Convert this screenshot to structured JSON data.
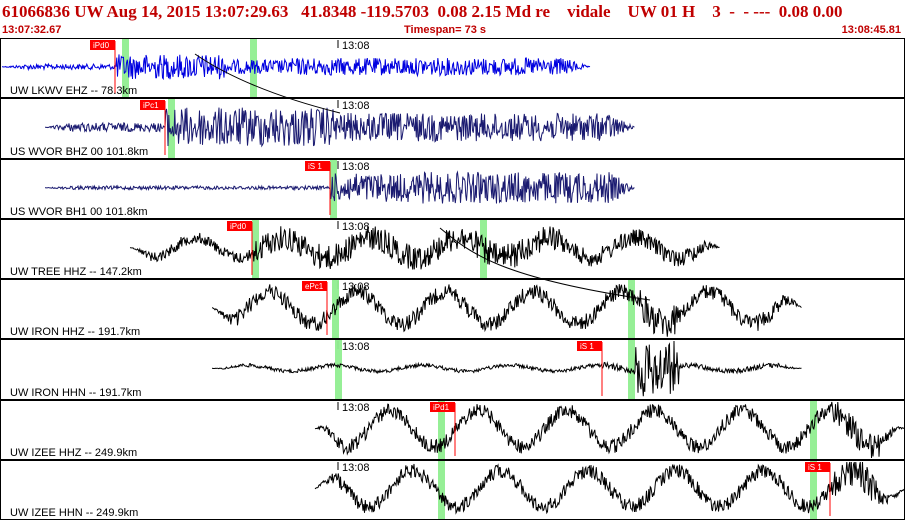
{
  "header": {
    "title": "61066836 UW Aug 14, 2015 13:07:29.63   41.8348 -119.5703  0.08 2.15 Md re    vidale    UW 01 H    3  -  - ---  0.08 0.00",
    "start_time": "13:07:32.67",
    "timespan": "Timespan=  73 s",
    "end_time": "13:08:45.81"
  },
  "colors": {
    "header_text": "#c00000",
    "pick_flag": "#ff0000",
    "window_marker": "#90ee90",
    "trace_blue": "#0000e0",
    "trace_navy": "#1a1a70",
    "trace_black": "#000000"
  },
  "channels": [
    {
      "label": "UW LKWV EHZ -- 78.3km",
      "time_label": "13:08",
      "color": "trace_blue",
      "pick": "iPd0",
      "pick_kind": "P"
    },
    {
      "label": "US WVOR BHZ 00 101.8km",
      "time_label": "13:08",
      "color": "trace_navy",
      "pick": "iPc1",
      "pick_kind": "P"
    },
    {
      "label": "US WVOR BH1 00 101.8km",
      "time_label": "13:08",
      "color": "trace_navy",
      "pick": "iS 1",
      "pick_kind": "S"
    },
    {
      "label": "UW TREE HHZ -- 147.2km",
      "time_label": "13:08",
      "color": "trace_black",
      "pick": "iPd0",
      "pick_kind": "P"
    },
    {
      "label": "UW IRON HHZ -- 191.7km",
      "time_label": "13:08",
      "color": "trace_black",
      "pick": "ePc1",
      "pick_kind": "P"
    },
    {
      "label": "UW IRON HHN -- 191.7km",
      "time_label": "13:08",
      "color": "trace_black",
      "pick": "iS 1",
      "pick_kind": "S"
    },
    {
      "label": "UW IZEE HHZ -- 249.9km",
      "time_label": "13:08",
      "color": "trace_black",
      "pick": "iPd1",
      "pick_kind": "P"
    },
    {
      "label": "UW IZEE HHN -- 249.9km",
      "time_label": "13:08",
      "color": "trace_black",
      "pick": "iS 1",
      "pick_kind": "S"
    }
  ]
}
